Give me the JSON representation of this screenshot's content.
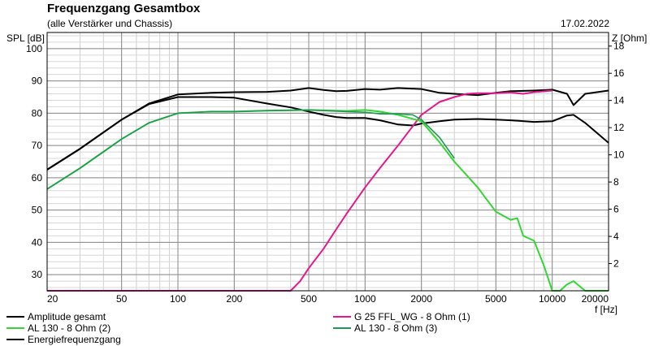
{
  "chart_data": {
    "type": "line",
    "title": "Frequenzgang Gesamtbox",
    "subtitle": "(alle Verstärker und Chassis)",
    "date": "17.02.2022",
    "ylabel_left": "SPL [dB]",
    "ylabel_right": "Z [Ohm]",
    "xlabel": "f [Hz]",
    "x_scale": "log",
    "xlim": [
      20,
      20000
    ],
    "ylim": [
      25,
      105
    ],
    "y2lim": [
      0,
      19
    ],
    "x_ticks": [
      "20",
      "50",
      "100",
      "200",
      "500",
      "1000",
      "2000",
      "5000",
      "10000",
      "20000"
    ],
    "x_tick_values": [
      20,
      50,
      100,
      200,
      500,
      1000,
      2000,
      5000,
      10000,
      20000
    ],
    "y_ticks": [
      "30",
      "40",
      "50",
      "60",
      "70",
      "80",
      "90",
      "100"
    ],
    "y_tick_values": [
      30,
      40,
      50,
      60,
      70,
      80,
      90,
      100
    ],
    "y2_ticks": [
      "2",
      "4",
      "6",
      "8",
      "10",
      "12",
      "14",
      "16",
      "18"
    ],
    "y2_tick_values": [
      2,
      4,
      6,
      8,
      10,
      12,
      14,
      16,
      18
    ],
    "grid": true,
    "series": [
      {
        "name": "Amplitude gesamt",
        "color": "#000000",
        "x": [
          20,
          30,
          50,
          70,
          100,
          150,
          200,
          300,
          400,
          500,
          600,
          700,
          800,
          1000,
          1200,
          1500,
          2000,
          2500,
          3000,
          4000,
          5000,
          6000,
          8000,
          10000,
          12000,
          13000,
          15000,
          20000
        ],
        "y": [
          62.5,
          69,
          78,
          83,
          85.8,
          86.3,
          86.5,
          86.6,
          87,
          87.8,
          87.2,
          86.8,
          86.9,
          87.5,
          87.3,
          87.8,
          87.5,
          86.3,
          86,
          85.6,
          86.3,
          86.8,
          87,
          87.3,
          86,
          82.5,
          86,
          87
        ]
      },
      {
        "name": "Amplitude gesamt (2)",
        "color": "#000000",
        "x": [
          20,
          30,
          50,
          70,
          100,
          150,
          200,
          300,
          400,
          500,
          600,
          700,
          800,
          1000,
          1200,
          1500,
          1800,
          2000,
          2500,
          3000,
          4000,
          5000,
          6000,
          8000,
          10000,
          12000,
          13000,
          15000,
          20000
        ],
        "y": [
          62.5,
          69,
          78,
          82.8,
          85,
          85,
          84.8,
          83,
          81.8,
          80.5,
          79.5,
          78.8,
          78.5,
          78.5,
          77.8,
          76.5,
          76.2,
          76.8,
          77.5,
          78,
          78.2,
          78,
          77.8,
          77.3,
          77.5,
          79.3,
          79.5,
          77,
          70.8
        ]
      },
      {
        "name": "G 25 FFL_WG - 8 Ohm (1)",
        "color": "#e6188c",
        "x": [
          20,
          400,
          450,
          500,
          600,
          700,
          800,
          1000,
          1200,
          1500,
          1800,
          2000,
          2500,
          3000,
          3500,
          4000,
          5000,
          6000,
          7000,
          8000,
          10000
        ],
        "y": [
          25,
          25,
          28,
          32,
          38,
          44,
          49,
          57,
          63,
          70,
          76,
          79.5,
          83.5,
          85,
          86,
          86.2,
          86.2,
          86.4,
          86,
          86.5,
          87
        ]
      },
      {
        "name": "AL 130 - 8 Ohm (2)",
        "color": "#33d633",
        "x": [
          20,
          30,
          50,
          70,
          100,
          150,
          200,
          300,
          500,
          800,
          1000,
          1200,
          1500,
          2000,
          2500,
          3000,
          4000,
          5000,
          6000,
          6500,
          7000,
          8000,
          9000,
          10000,
          11000,
          12000,
          13000,
          15000,
          20000
        ],
        "y": [
          56.5,
          63,
          72,
          77,
          80,
          80.5,
          80.5,
          80.8,
          81,
          80.7,
          81,
          80.5,
          79.5,
          77.5,
          71,
          65,
          57,
          49.5,
          47,
          47.5,
          42,
          40.5,
          33,
          25,
          25,
          27,
          28,
          25,
          25
        ]
      },
      {
        "name": "AL 130 - 8 Ohm (3)",
        "color": "#1f9955",
        "x": [
          20,
          30,
          50,
          70,
          100,
          150,
          200,
          300,
          500,
          800,
          1000,
          1200,
          1500,
          1800,
          2000,
          2500,
          3000
        ],
        "y": [
          56.5,
          63,
          72,
          77,
          80,
          80.5,
          80.5,
          80.8,
          81,
          80.5,
          80.3,
          79.8,
          79.8,
          79.5,
          78,
          72.5,
          66
        ]
      },
      {
        "name": "Energiefrequenzgang",
        "color": "#000000",
        "x": [],
        "y": []
      }
    ],
    "legend": [
      {
        "label": "Amplitude gesamt",
        "color": "#000000"
      },
      {
        "label": "AL 130 - 8 Ohm (2)",
        "color": "#33d633"
      },
      {
        "label": "Energiefrequenzgang",
        "color": "#000000"
      },
      {
        "label": "G 25 FFL_WG - 8 Ohm (1)",
        "color": "#e6188c"
      },
      {
        "label": "AL 130 - 8 Ohm (3)",
        "color": "#1f9955"
      }
    ]
  }
}
